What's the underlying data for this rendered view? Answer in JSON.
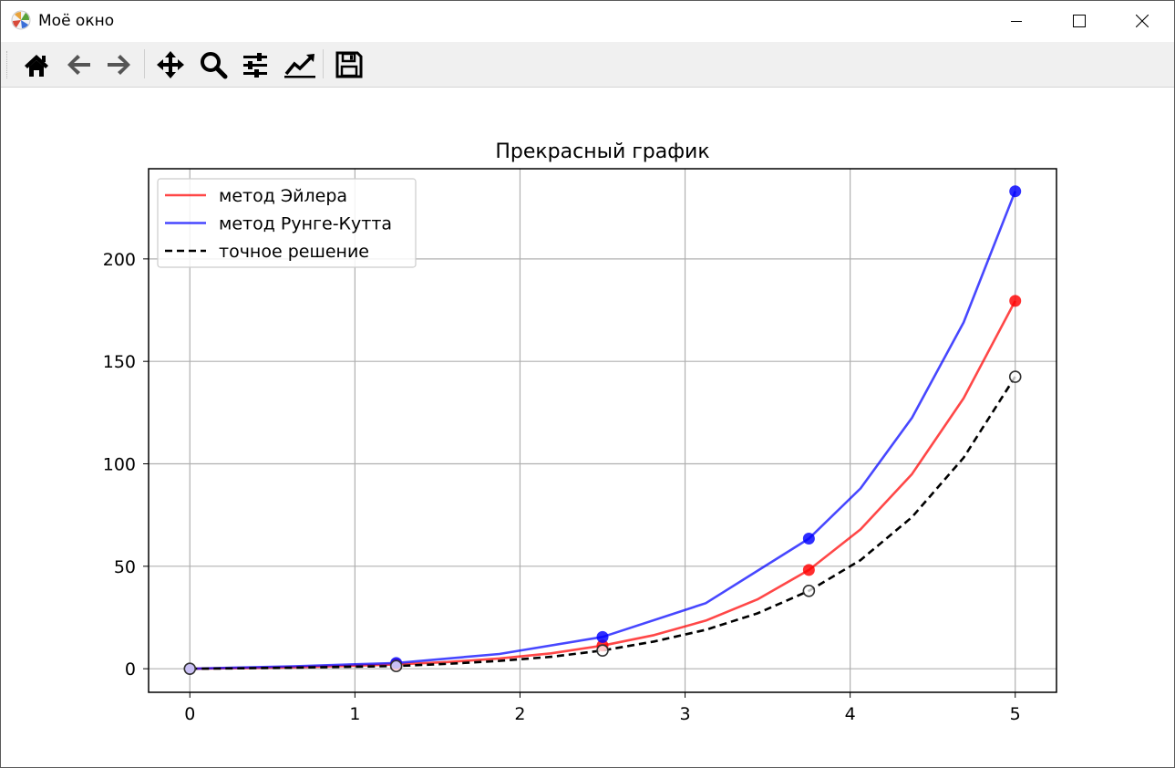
{
  "window": {
    "title": "Моё окно"
  },
  "toolbar": {
    "buttons": [
      {
        "name": "home-icon",
        "label": ""
      },
      {
        "name": "back-icon",
        "label": ""
      },
      {
        "name": "forward-icon",
        "label": ""
      },
      {
        "name": "pan-icon",
        "label": ""
      },
      {
        "name": "zoom-icon",
        "label": ""
      },
      {
        "name": "configure-subplots-icon",
        "label": ""
      },
      {
        "name": "edit-axis-icon",
        "label": ""
      },
      {
        "name": "save-icon",
        "label": ""
      }
    ]
  },
  "chart_data": {
    "type": "line",
    "title": "Прекрасный график",
    "xlabel": "",
    "ylabel": "",
    "xlim": [
      -0.25,
      5.25
    ],
    "ylim": [
      -11.5,
      244
    ],
    "xticks": [
      0,
      1,
      2,
      3,
      4,
      5
    ],
    "yticks": [
      0,
      50,
      100,
      150,
      200
    ],
    "grid": true,
    "legend_position": "top-left",
    "series": [
      {
        "name": "метод Эйлера",
        "color": "#ff0000",
        "style": "solid",
        "x": [
          0,
          0.3125,
          0.625,
          0.9375,
          1.25,
          1.5625,
          1.875,
          2.1875,
          2.5,
          2.8125,
          3.125,
          3.4375,
          3.75,
          4.0625,
          4.375,
          4.6875,
          5
        ],
        "y": [
          0,
          0.3,
          0.7,
          1.3,
          2.1,
          3.3,
          5.0,
          7.5,
          11.3,
          16.4,
          23.5,
          33.8,
          48.2,
          68.0,
          95.0,
          132.0,
          179.5
        ],
        "markers": {
          "x": [
            0,
            1.25,
            2.5,
            3.75,
            5
          ],
          "y": [
            0,
            2.1,
            11.3,
            48.2,
            179.5
          ]
        }
      },
      {
        "name": "метод Рунге-Кутта",
        "color": "#0000ff",
        "style": "solid",
        "x": [
          0,
          0.625,
          1.25,
          1.875,
          2.5,
          3.125,
          3.75,
          4.0625,
          4.375,
          4.6875,
          5
        ],
        "y": [
          0,
          1.2,
          2.8,
          7.2,
          15.5,
          32.0,
          63.5,
          88.0,
          122.5,
          169.0,
          233.0
        ],
        "markers": {
          "x": [
            0,
            1.25,
            2.5,
            3.75,
            5
          ],
          "y": [
            0,
            2.8,
            15.5,
            63.5,
            233.0
          ]
        }
      },
      {
        "name": "точное решение",
        "color": "#000000",
        "style": "dashed",
        "x": [
          0,
          0.3125,
          0.625,
          0.9375,
          1.25,
          1.5625,
          1.875,
          2.1875,
          2.5,
          2.8125,
          3.125,
          3.4375,
          3.75,
          4.0625,
          4.375,
          4.6875,
          5
        ],
        "y": [
          0,
          0.2,
          0.5,
          0.9,
          1.3,
          2.4,
          3.8,
          5.8,
          8.9,
          13.3,
          19.0,
          27.0,
          38.0,
          53.0,
          74.0,
          103.0,
          142.5
        ],
        "markers": {
          "x": [
            0,
            1.25,
            2.5,
            3.75,
            5
          ],
          "y": [
            0,
            1.3,
            8.9,
            38.0,
            142.5
          ],
          "hollow": true
        }
      }
    ]
  }
}
